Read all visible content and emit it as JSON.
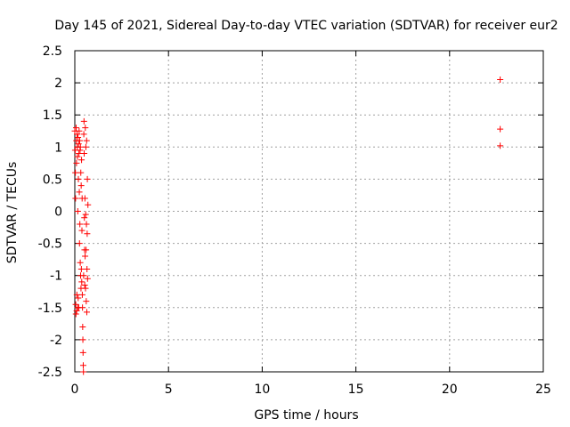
{
  "chart_data": {
    "type": "scatter",
    "title": "Day 145 of 2021, Sidereal Day-to-day VTEC variation (SDTVAR) for receiver eur2",
    "xlabel": "GPS time / hours",
    "ylabel": "SDTVAR / TECUs",
    "xlim": [
      0,
      25
    ],
    "ylim": [
      -2.5,
      2.5
    ],
    "xticks": [
      0,
      5,
      10,
      15,
      20,
      25
    ],
    "yticks": [
      -2.5,
      -2,
      -1.5,
      -1,
      -0.5,
      0,
      0.5,
      1,
      1.5,
      2,
      2.5
    ],
    "xtick_labels": [
      "0",
      "5",
      "10",
      "15",
      "20",
      "25"
    ],
    "ytick_labels": [
      "-2.5",
      "-2",
      "-1.5",
      "-1",
      "-0.5",
      "0",
      "0.5",
      "1",
      "1.5",
      "2",
      "2.5"
    ],
    "grid": true,
    "marker": "+",
    "color": "#ff0000",
    "series": [
      {
        "name": "SDTVAR",
        "points": [
          [
            0.0,
            1.25
          ],
          [
            0.02,
            0.95
          ],
          [
            0.03,
            0.6
          ],
          [
            0.04,
            0.2
          ],
          [
            0.05,
            -1.45
          ],
          [
            0.06,
            -1.6
          ],
          [
            0.07,
            1.3
          ],
          [
            0.08,
            1.1
          ],
          [
            0.09,
            0.75
          ],
          [
            0.1,
            -1.55
          ],
          [
            0.11,
            -1.3
          ],
          [
            0.12,
            1.2
          ],
          [
            0.13,
            1.0
          ],
          [
            0.14,
            0.85
          ],
          [
            0.15,
            -1.5
          ],
          [
            0.16,
            0.0
          ],
          [
            0.17,
            1.15
          ],
          [
            0.18,
            -1.35
          ],
          [
            0.19,
            0.5
          ],
          [
            0.2,
            1.05
          ],
          [
            0.21,
            -1.5
          ],
          [
            0.22,
            0.9
          ],
          [
            0.23,
            1.25
          ],
          [
            0.24,
            0.3
          ],
          [
            0.25,
            -0.5
          ],
          [
            0.26,
            1.1
          ],
          [
            0.27,
            -0.2
          ],
          [
            0.28,
            0.95
          ],
          [
            0.29,
            -0.8
          ],
          [
            0.3,
            1.0
          ],
          [
            0.31,
            -1.0
          ],
          [
            0.32,
            0.6
          ],
          [
            0.33,
            -1.2
          ],
          [
            0.34,
            0.4
          ],
          [
            0.35,
            -0.9
          ],
          [
            0.36,
            0.8
          ],
          [
            0.37,
            -1.1
          ],
          [
            0.38,
            -0.3
          ],
          [
            0.39,
            0.2
          ],
          [
            0.4,
            -1.3
          ],
          [
            0.41,
            -1.5
          ],
          [
            0.42,
            -1.8
          ],
          [
            0.43,
            -2.0
          ],
          [
            0.44,
            -2.2
          ],
          [
            0.45,
            -2.4
          ],
          [
            0.46,
            -2.5
          ],
          [
            0.47,
            -1.0
          ],
          [
            0.48,
            1.2
          ],
          [
            0.49,
            1.4
          ],
          [
            0.5,
            0.9
          ],
          [
            0.51,
            -0.1
          ],
          [
            0.52,
            -0.6
          ],
          [
            0.53,
            -1.15
          ],
          [
            0.54,
            0.2
          ],
          [
            0.55,
            -0.7
          ],
          [
            0.56,
            1.3
          ],
          [
            0.57,
            -1.2
          ],
          [
            0.58,
            -0.05
          ],
          [
            0.59,
            1.0
          ],
          [
            0.6,
            -0.6
          ],
          [
            0.61,
            -1.4
          ],
          [
            0.62,
            -0.2
          ],
          [
            0.63,
            1.1
          ],
          [
            0.64,
            -1.57
          ],
          [
            0.65,
            -0.9
          ],
          [
            0.66,
            -0.35
          ],
          [
            0.67,
            0.5
          ],
          [
            0.68,
            -1.05
          ],
          [
            0.7,
            0.1
          ],
          [
            22.7,
            2.05
          ],
          [
            22.7,
            1.28
          ],
          [
            22.7,
            1.02
          ]
        ]
      }
    ]
  }
}
